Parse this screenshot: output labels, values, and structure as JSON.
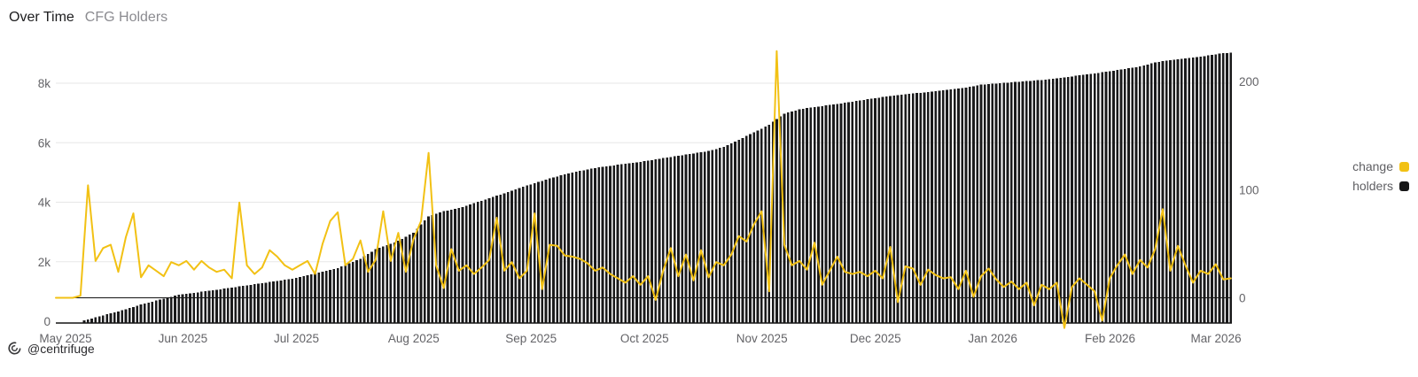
{
  "header": {
    "title": "Over Time",
    "subtitle": "CFG Holders"
  },
  "legend": [
    {
      "label": "change",
      "color": "#f2c114"
    },
    {
      "label": "holders",
      "color": "#161617"
    }
  ],
  "footer": {
    "watermark": "@centrifuge",
    "logo_icon": "centrifuge-logo"
  },
  "colors": {
    "background": "#ffffff",
    "accent_yellow": "#f2c114",
    "bar_black": "#1a1a1b",
    "gridline": "#e7e7e7",
    "axis_line": "#141414",
    "tick_label": "#636367",
    "title": "#1c1c1e",
    "subtitle": "#8b8b90"
  },
  "chart_data": {
    "type": "bar",
    "title": "Over Time — CFG Holders",
    "x_start": "2025-05-01",
    "x_step_days": 2,
    "x_tick_labels": [
      "May 2025",
      "Jun 2025",
      "Jul 2025",
      "Aug 2025",
      "Sep 2025",
      "Oct 2025",
      "Nov 2025",
      "Dec 2025",
      "Jan 2026",
      "Feb 2026",
      "Mar 2026"
    ],
    "month_tick_days": [
      0,
      31,
      61,
      92,
      123,
      153,
      184,
      214,
      245,
      276,
      304
    ],
    "left_axis": {
      "label": "holders",
      "ticks": [
        0,
        2000,
        4000,
        6000,
        8000
      ],
      "tick_labels": [
        "0",
        "2k",
        "4k",
        "6k",
        "8k"
      ],
      "range": [
        0,
        9300
      ]
    },
    "right_axis": {
      "label": "change",
      "ticks": [
        0,
        100,
        200
      ],
      "tick_labels": [
        "0",
        "100",
        "200"
      ],
      "range": [
        -30,
        235
      ]
    },
    "grid": "horizontal-only",
    "legend_position": "right",
    "series": [
      {
        "name": "holders",
        "type": "bar",
        "axis": "left",
        "color": "#1a1a1b",
        "values": [
          0,
          0,
          0,
          60,
          130,
          200,
          265,
          330,
          407,
          483,
          560,
          627,
          693,
          760,
          825,
          890,
          923,
          957,
          990,
          1025,
          1060,
          1095,
          1130,
          1168,
          1205,
          1243,
          1280,
          1318,
          1355,
          1393,
          1430,
          1487,
          1543,
          1600,
          1663,
          1727,
          1790,
          1893,
          1997,
          2100,
          2260,
          2420,
          2513,
          2607,
          2700,
          2840,
          2980,
          3250,
          3520,
          3610,
          3700,
          3750,
          3800,
          3883,
          3967,
          4050,
          4133,
          4217,
          4300,
          4387,
          4473,
          4560,
          4640,
          4720,
          4800,
          4867,
          4933,
          5000,
          5050,
          5100,
          5150,
          5187,
          5223,
          5260,
          5293,
          5327,
          5360,
          5400,
          5440,
          5480,
          5520,
          5560,
          5600,
          5640,
          5680,
          5720,
          5790,
          5860,
          5980,
          6100,
          6225,
          6350,
          6475,
          6600,
          6800,
          6980,
          7050,
          7120,
          7160,
          7200,
          7233,
          7267,
          7300,
          7340,
          7380,
          7420,
          7460,
          7500,
          7533,
          7567,
          7600,
          7627,
          7653,
          7680,
          7707,
          7733,
          7760,
          7790,
          7820,
          7850,
          7900,
          7950,
          7970,
          7990,
          8010,
          8030,
          8050,
          8070,
          8090,
          8110,
          8130,
          8163,
          8197,
          8230,
          8263,
          8297,
          8330,
          8367,
          8403,
          8440,
          8480,
          8520,
          8560,
          8630,
          8700,
          8740,
          8780,
          8807,
          8833,
          8860,
          8895,
          8930,
          8970,
          9010,
          9020
        ]
      },
      {
        "name": "change",
        "type": "line",
        "axis": "right",
        "color": "#f2c114",
        "values": [
          0,
          0,
          2,
          104,
          34,
          46,
          49,
          24,
          56,
          78,
          19,
          30,
          25,
          20,
          33,
          30,
          34,
          26,
          34,
          28,
          24,
          26,
          18,
          88,
          30,
          22,
          28,
          44,
          38,
          30,
          26,
          30,
          34,
          22,
          50,
          71,
          79,
          30,
          36,
          53,
          24,
          35,
          80,
          34,
          60,
          24,
          54,
          71,
          134,
          30,
          9,
          45,
          25,
          30,
          22,
          28,
          35,
          74,
          25,
          33,
          18,
          25,
          78,
          8,
          49,
          48,
          39,
          38,
          36,
          32,
          25,
          28,
          22,
          18,
          14,
          20,
          12,
          20,
          -2,
          25,
          46,
          20,
          40,
          16,
          44,
          19,
          33,
          30,
          40,
          57,
          52,
          68,
          80,
          6,
          228,
          49,
          30,
          34,
          26,
          51,
          12,
          25,
          38,
          24,
          22,
          24,
          20,
          25,
          18,
          47,
          -4,
          29,
          27,
          12,
          26,
          21,
          18,
          19,
          8,
          25,
          1,
          20,
          27,
          17,
          10,
          15,
          8,
          14,
          -7,
          12,
          8,
          14,
          -28,
          10,
          18,
          12,
          6,
          -21,
          18,
          30,
          40,
          22,
          35,
          28,
          45,
          82,
          25,
          48,
          30,
          14,
          25,
          22,
          31,
          17,
          18
        ]
      }
    ]
  }
}
